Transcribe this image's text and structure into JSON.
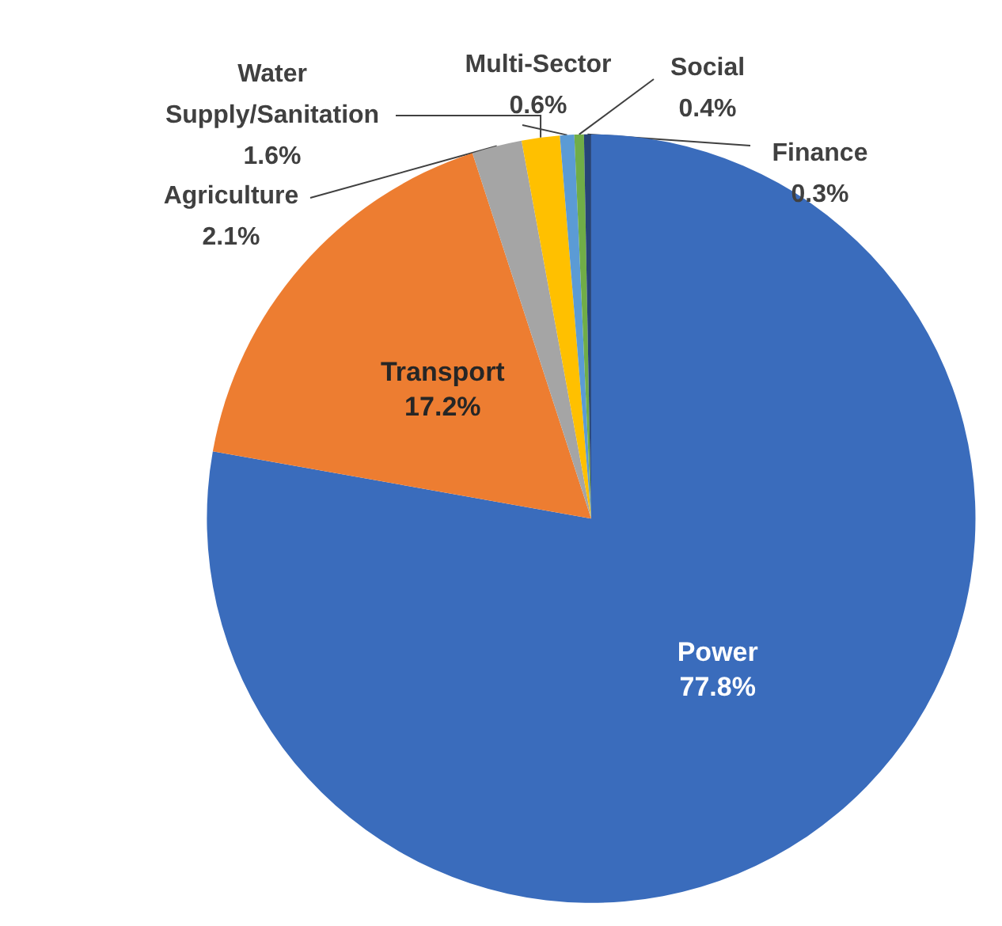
{
  "chart_data": {
    "type": "pie",
    "categories": [
      "Power",
      "Transport",
      "Agriculture",
      "Water Supply/Sanitation",
      "Multi-Sector",
      "Social",
      "Finance"
    ],
    "values": [
      77.8,
      17.2,
      2.1,
      1.6,
      0.6,
      0.4,
      0.3
    ],
    "colors": [
      "#3a6cbc",
      "#ed7d31",
      "#a5a5a5",
      "#ffc000",
      "#5b9bd5",
      "#70ad47",
      "#264478"
    ],
    "value_labels": [
      "77.8%",
      "17.2%",
      "2.1%",
      "1.6%",
      "0.6%",
      "0.4%",
      "0.3%"
    ]
  }
}
